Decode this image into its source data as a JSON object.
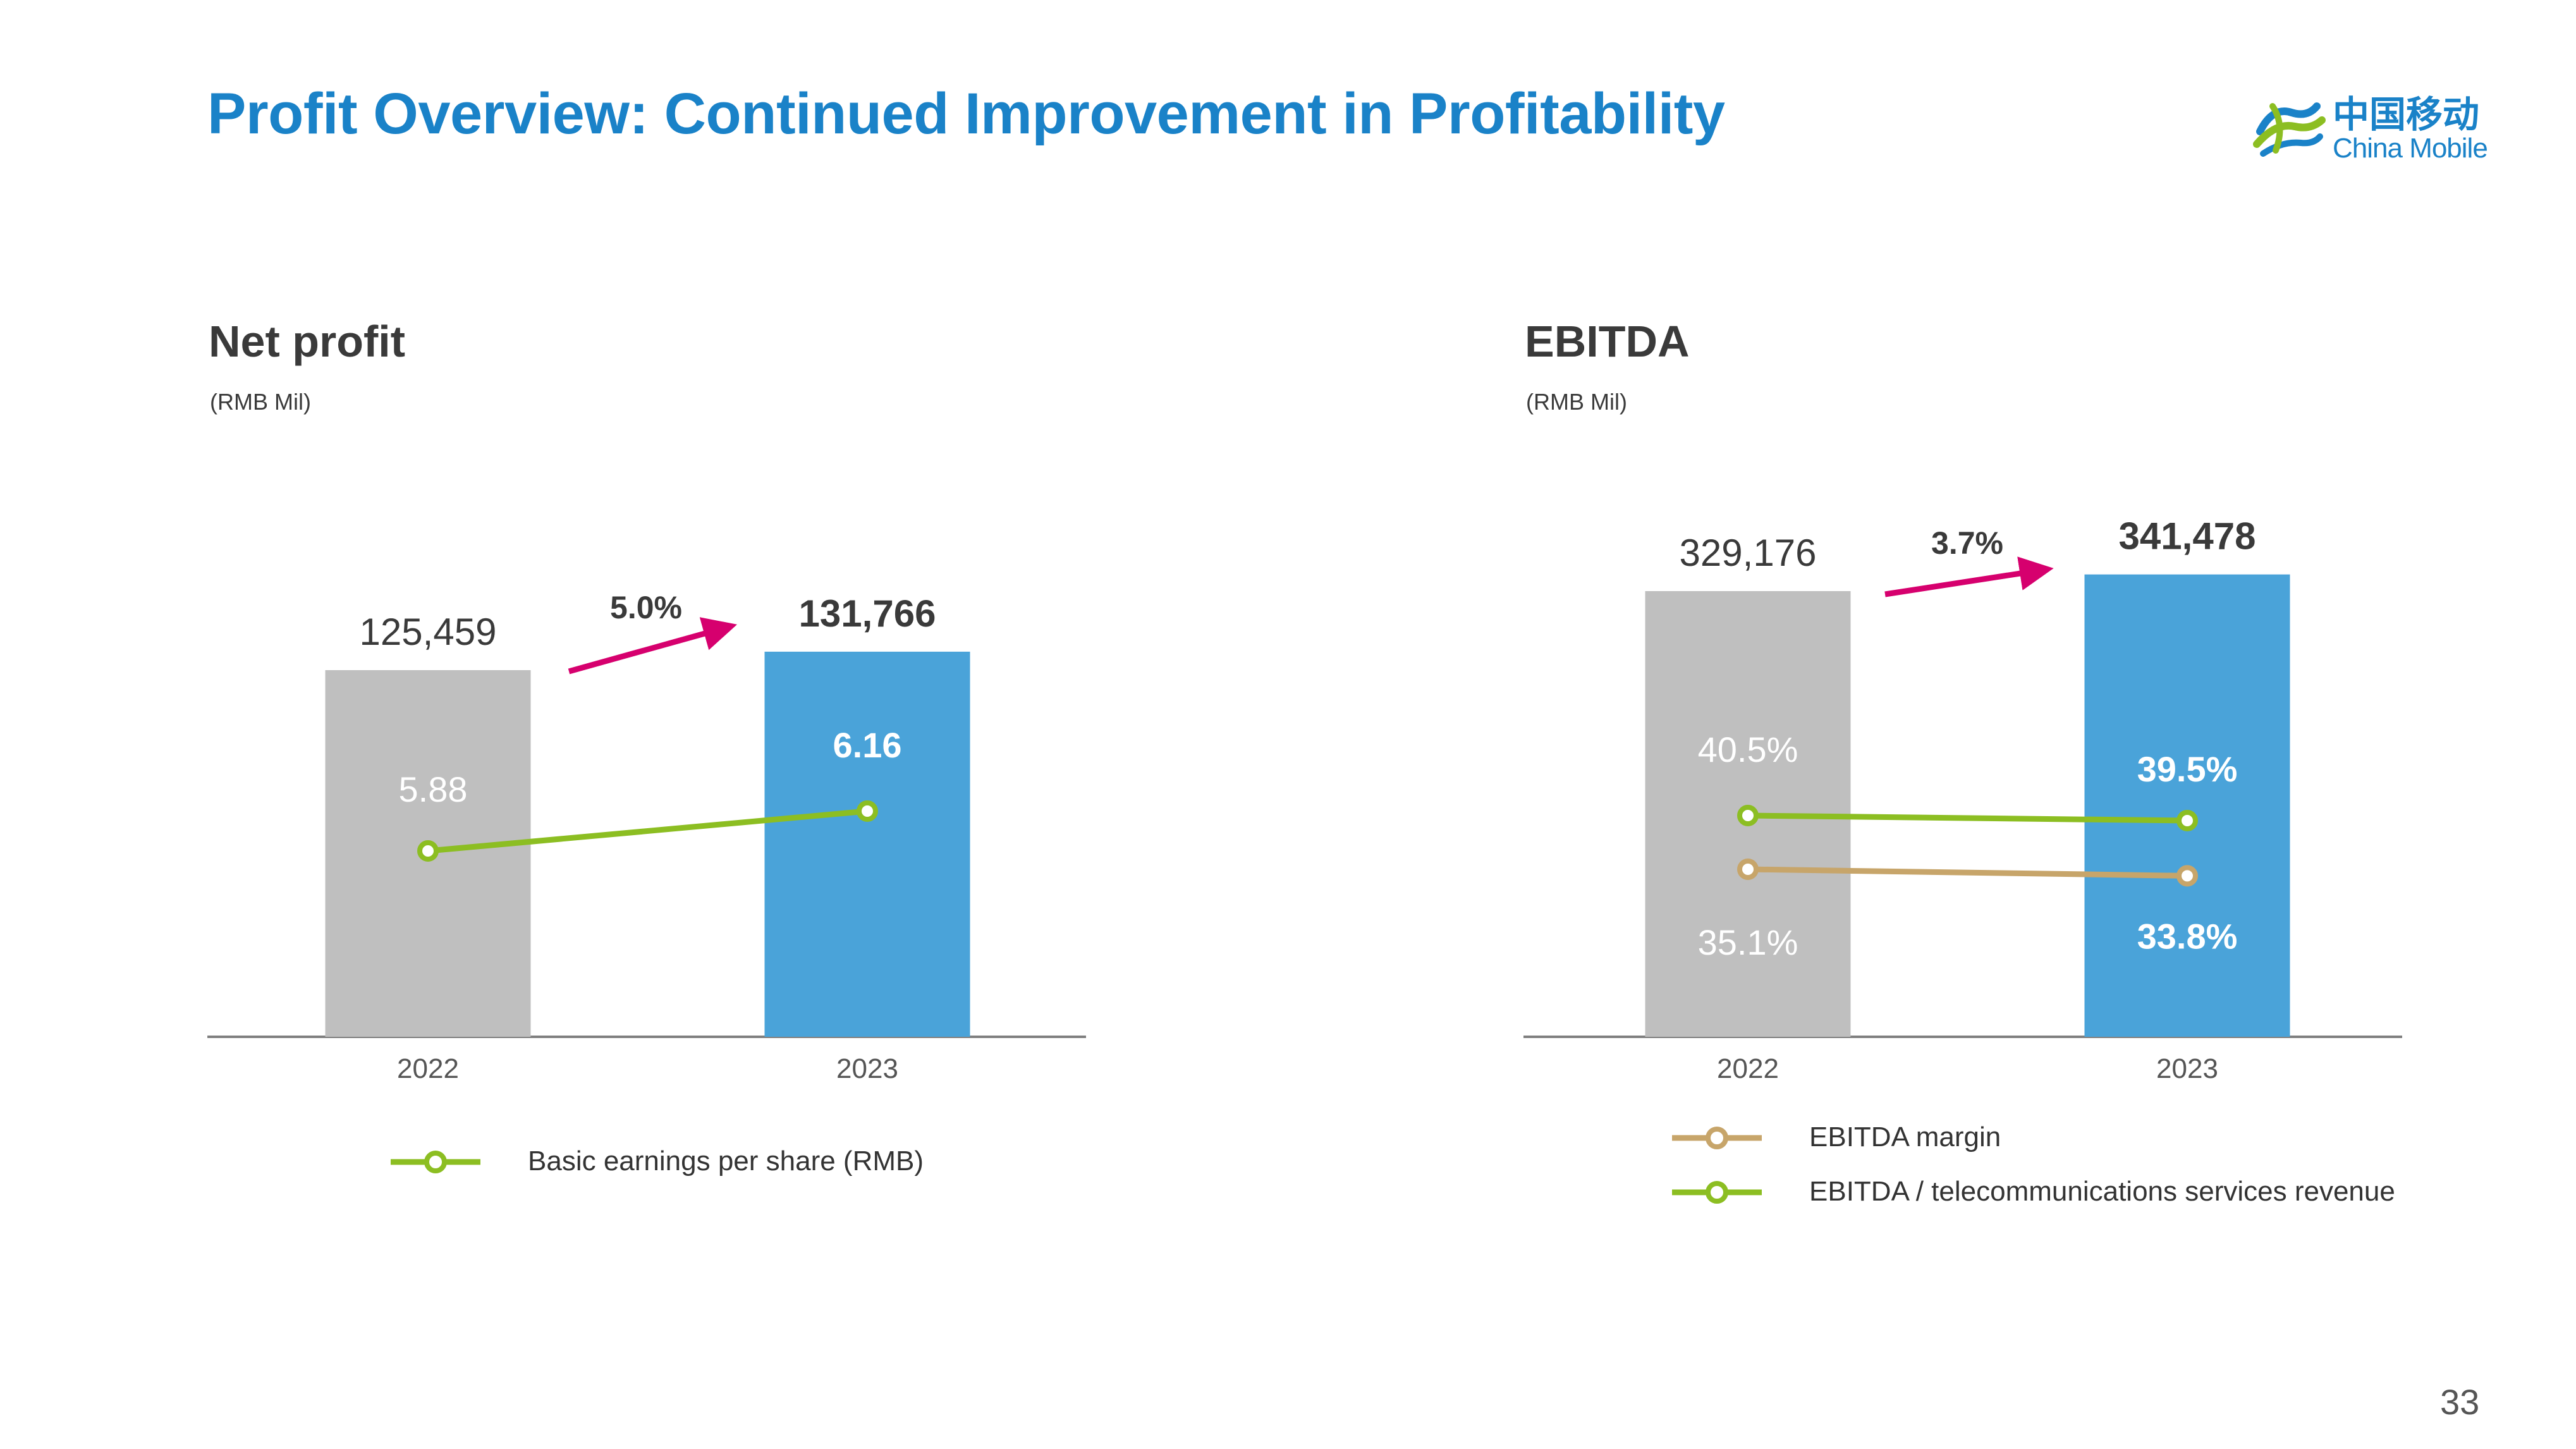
{
  "page": {
    "title": "Profit Overview: Continued Improvement in Profitability",
    "page_number": "33",
    "logo": {
      "cn": "中国移动",
      "en": "China Mobile"
    }
  },
  "colors": {
    "title": "#1a82c8",
    "bar_2022": "#bfbfbf",
    "bar_2023": "#4aa3d9",
    "growth_arrow": "#d6006e",
    "green_line": "#8cbe22",
    "tan_line": "#c7a56a",
    "axis": "#7f7f7f"
  },
  "panels": {
    "net_profit": {
      "title": "Net profit",
      "unit": "(RMB Mil)"
    },
    "ebitda": {
      "title": "EBITDA",
      "unit": "(RMB Mil)"
    }
  },
  "chart_data": [
    {
      "type": "bar",
      "title": "Net profit",
      "unit": "(RMB Mil)",
      "categories": [
        "2022",
        "2023"
      ],
      "series": [
        {
          "values": [
            125459,
            131766
          ],
          "labels": [
            "125,459",
            "131,766"
          ]
        }
      ],
      "growth_label": "5.0%",
      "overlay_lines": [
        {
          "name": "Basic earnings per share (RMB)",
          "values": [
            5.88,
            6.16
          ],
          "labels": [
            "5.88",
            "6.16"
          ]
        }
      ],
      "legend": [
        "Basic earnings per share (RMB)"
      ]
    },
    {
      "type": "bar",
      "title": "EBITDA",
      "unit": "(RMB Mil)",
      "categories": [
        "2022",
        "2023"
      ],
      "series": [
        {
          "values": [
            329176,
            341478
          ],
          "labels": [
            "329,176",
            "341,478"
          ]
        }
      ],
      "growth_label": "3.7%",
      "overlay_lines": [
        {
          "name": "EBITDA / telecommunications services revenue",
          "values": [
            40.5,
            39.5
          ],
          "labels": [
            "40.5%",
            "39.5%"
          ]
        },
        {
          "name": "EBITDA margin",
          "values": [
            35.1,
            33.8
          ],
          "labels": [
            "35.1%",
            "33.8%"
          ]
        }
      ],
      "legend": [
        "EBITDA margin",
        "EBITDA / telecommunications services revenue"
      ]
    }
  ]
}
